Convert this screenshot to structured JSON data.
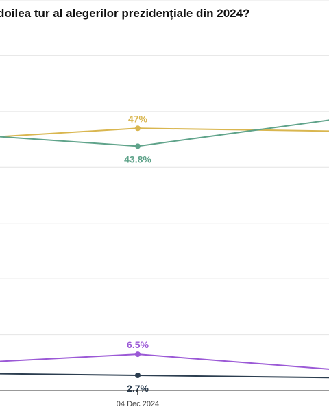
{
  "chart_data": {
    "type": "line",
    "title": "doilea tur al alegerilor prezidențiale din 2024?",
    "xlabel": "",
    "ylabel": "",
    "x_tick_labels": [
      "04 Dec 2024"
    ],
    "ylim": [
      0,
      70
    ],
    "grid": true,
    "series": [
      {
        "color": "#d9b64f",
        "values": [
          45.5,
          47,
          46.5
        ],
        "labels": [
          "",
          "47%",
          ""
        ]
      },
      {
        "color": "#5fa38a",
        "values": [
          45.5,
          43.8,
          48.5
        ],
        "labels": [
          "",
          "43.8%",
          ""
        ]
      },
      {
        "color": "#9b59d6",
        "values": [
          5.2,
          6.5,
          3.8
        ],
        "labels": [
          "",
          "6.5%",
          ""
        ]
      },
      {
        "color": "#2c3e50",
        "values": [
          3.0,
          2.7,
          2.3
        ],
        "labels": [
          "",
          "2.7%",
          ""
        ]
      }
    ]
  }
}
